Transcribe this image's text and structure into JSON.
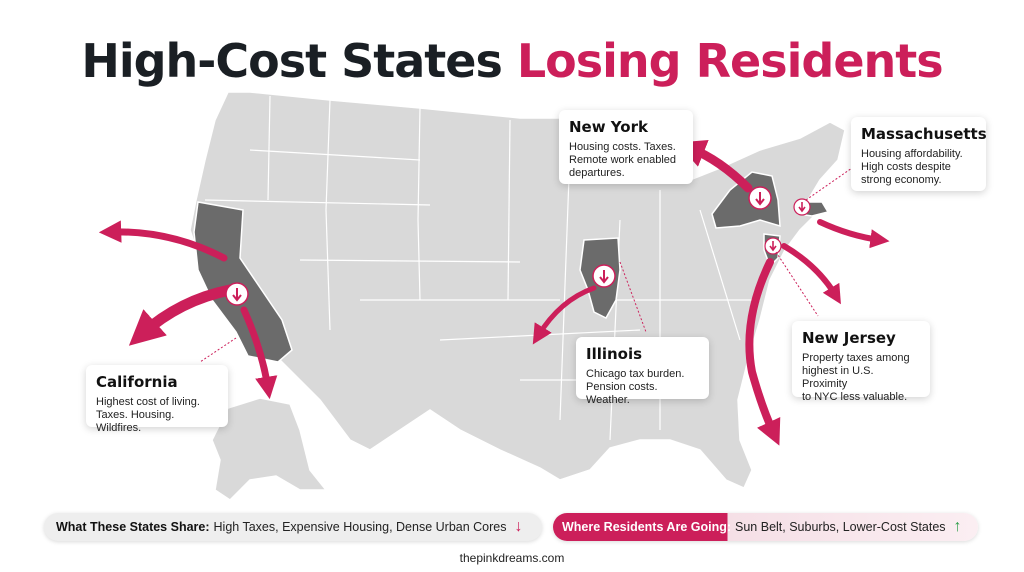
{
  "title": {
    "part1": "High-Cost States",
    "part2": "Losing Residents"
  },
  "colors": {
    "accent": "#cc1f5a",
    "dark": "#1a1f24",
    "map_base": "#d9d9d9",
    "map_highlight": "#6b6b6b",
    "arrow_up": "#2e9e4a"
  },
  "states": [
    {
      "name": "New York",
      "description": "Housing costs. Taxes.\nRemote work enabled\ndepartures."
    },
    {
      "name": "Massachusetts",
      "description": "Housing affordability.\nHigh costs despite\nstrong economy."
    },
    {
      "name": "California",
      "description": "Highest cost of living.\nTaxes. Housing. Wildfires."
    },
    {
      "name": "Illinois",
      "description": "Chicago tax burden.\nPension costs. Weather."
    },
    {
      "name": "New Jersey",
      "description": "Property taxes among\nhighest in U.S. Proximity\nto NYC less valuable."
    }
  ],
  "shared": {
    "label": "What These States Share:",
    "value": "High Taxes, Expensive Housing, Dense Urban Cores",
    "arrow": "↓"
  },
  "going": {
    "label": "Where Residents Are Going:",
    "value": "Sun Belt, Suburbs, Lower-Cost States",
    "arrow": "↑"
  },
  "footer": "thepinkdreams.com"
}
